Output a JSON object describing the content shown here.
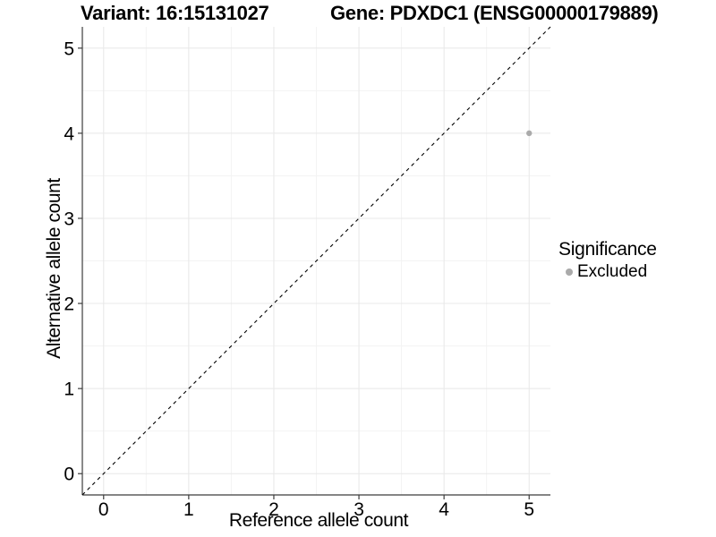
{
  "header": {
    "title_left": "Variant: 16:15131027",
    "title_right": "Gene: PDXDC1 (ENSG00000179889)"
  },
  "chart_data": {
    "type": "scatter",
    "xlabel": "Reference allele count",
    "ylabel": "Alternative allele count",
    "xlim": [
      -0.25,
      5.25
    ],
    "ylim": [
      -0.25,
      5.25
    ],
    "xticks": [
      0,
      1,
      2,
      3,
      4,
      5
    ],
    "yticks": [
      0,
      1,
      2,
      3,
      4,
      5
    ],
    "grid": {
      "major": true,
      "minor": true
    },
    "reference_line": {
      "kind": "identity",
      "from": [
        -0.25,
        -0.25
      ],
      "to": [
        5.25,
        5.25
      ],
      "style": "dashed",
      "color": "#000000"
    },
    "series": [
      {
        "name": "Excluded",
        "color": "#aaaaaa",
        "marker_radius": 3.2,
        "points": [
          {
            "x": 5,
            "y": 4
          }
        ]
      }
    ],
    "legend": {
      "title": "Significance",
      "position": "right",
      "items": [
        {
          "label": "Excluded",
          "color": "#aaaaaa"
        }
      ]
    }
  },
  "colors": {
    "background": "#ffffff",
    "grid_major": "#e8e8e8",
    "grid_minor": "#f3f3f3",
    "axis_line": "#3c3c3c",
    "tick_mark": "#3c3c3c",
    "text": "#000000"
  }
}
